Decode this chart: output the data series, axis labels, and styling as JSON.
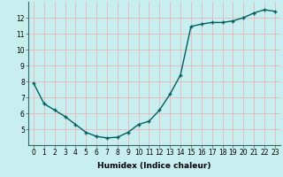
{
  "x": [
    0,
    1,
    2,
    3,
    4,
    5,
    6,
    7,
    8,
    9,
    10,
    11,
    12,
    13,
    14,
    15,
    16,
    17,
    18,
    19,
    20,
    21,
    22,
    23
  ],
  "y": [
    7.9,
    6.6,
    6.2,
    5.8,
    5.3,
    4.8,
    4.55,
    4.45,
    4.5,
    4.8,
    5.3,
    5.5,
    6.2,
    7.2,
    8.4,
    11.45,
    11.6,
    11.7,
    11.7,
    11.8,
    12.0,
    12.3,
    12.5,
    12.4
  ],
  "xlabel": "Humidex (Indice chaleur)",
  "bg_color": "#c8eef0",
  "grid_color": "#e8b8b8",
  "line_color": "#006060",
  "marker": "+",
  "xlim": [
    -0.5,
    23.5
  ],
  "ylim": [
    4.0,
    13.0
  ],
  "yticks": [
    5,
    6,
    7,
    8,
    9,
    10,
    11,
    12
  ],
  "xticks": [
    0,
    1,
    2,
    3,
    4,
    5,
    6,
    7,
    8,
    9,
    10,
    11,
    12,
    13,
    14,
    15,
    16,
    17,
    18,
    19,
    20,
    21,
    22,
    23
  ],
  "tick_fontsize": 5.5,
  "xlabel_fontsize": 6.5,
  "line_width": 1.0,
  "marker_size": 3.5,
  "marker_edge_width": 1.0
}
